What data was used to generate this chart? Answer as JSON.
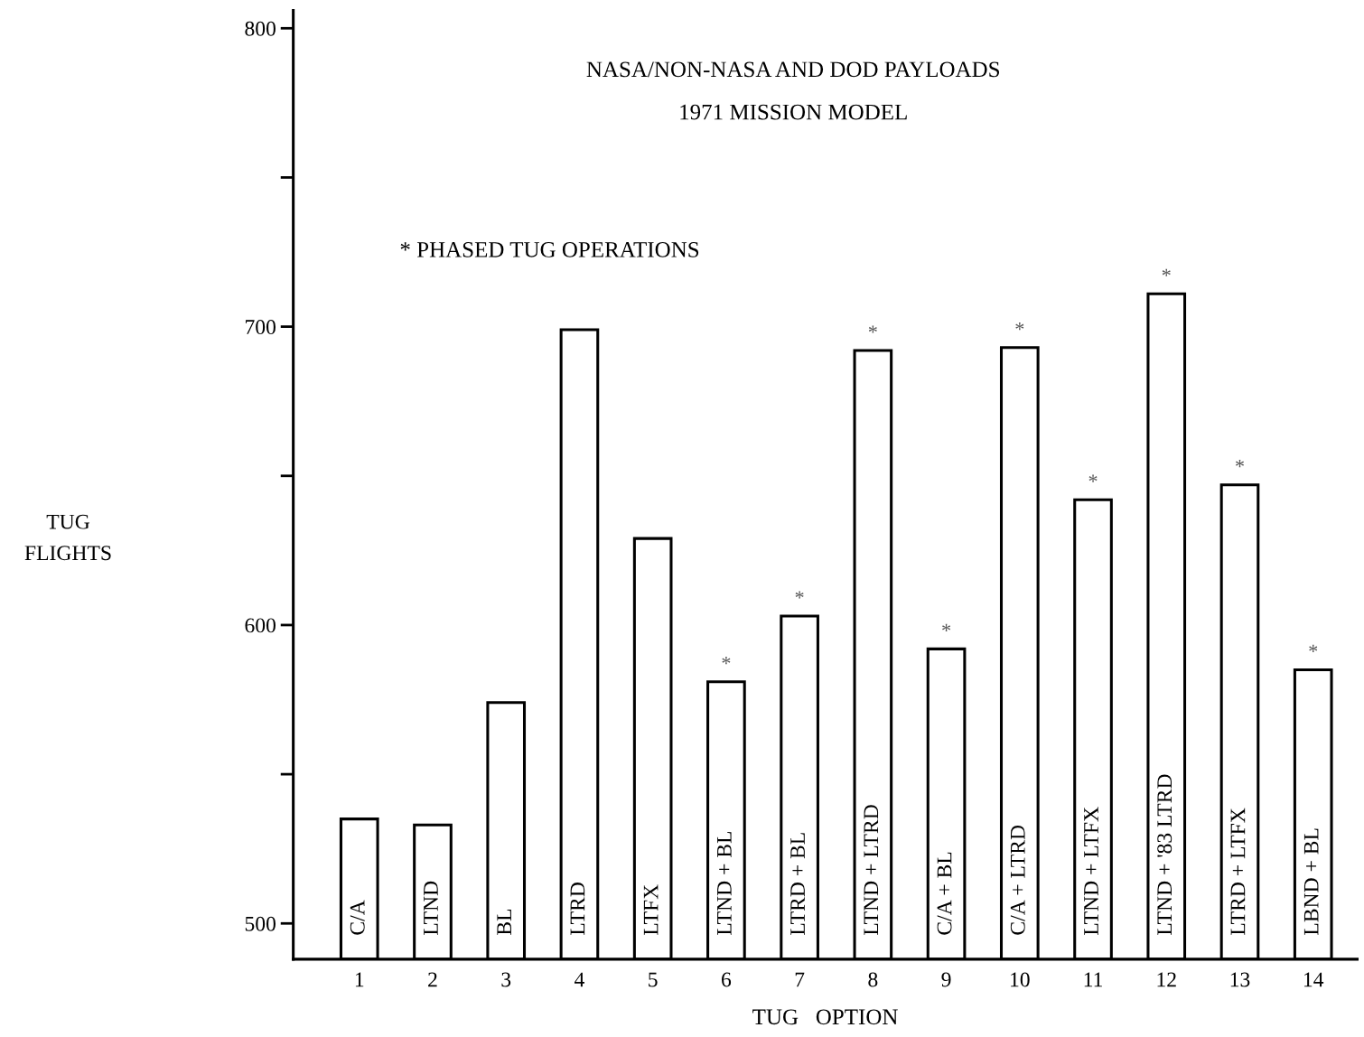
{
  "chart_data": {
    "type": "bar",
    "title": "NASA/NON-NASA AND DOD PAYLOADS",
    "subtitle": "1971 MISSION MODEL",
    "xlabel": "TUG   OPTION",
    "categories": [
      "1",
      "2",
      "3",
      "4",
      "5",
      "6",
      "7",
      "8",
      "9",
      "10",
      "11",
      "12",
      "13",
      "14"
    ],
    "values": [
      535,
      533,
      574,
      699,
      629,
      581,
      603,
      692,
      592,
      693,
      642,
      711,
      647,
      585
    ],
    "color": "#ffffff",
    "ylim": [
      488,
      806
    ],
    "yticks": [
      500,
      {
        "value": 550,
        "label": null
      },
      600,
      {
        "value": 650,
        "label": null
      },
      700,
      {
        "value": 750,
        "label": null
      },
      800
    ],
    "grid": false,
    "annotations": [
      "* PHASED TUG OPERATIONS",
      "TUG\nFLIGHTS",
      "C/A",
      "LTND",
      "BL",
      "LTRD",
      "LTFX",
      "LTND + BL",
      "LTRD + BL",
      "LTND + LTRD",
      "C/A + BL",
      "C/A + LTRD",
      "LTND + LTFX",
      "LTND + '83 LTRD",
      "LTRD + LTFX",
      "LBND + BL",
      {
        "text": "*",
        "x": "6",
        "y": 581
      },
      {
        "text": "*",
        "x": "7",
        "y": 603
      },
      {
        "text": "*",
        "x": "8",
        "y": 692
      },
      {
        "text": "*",
        "x": "9",
        "y": 592
      },
      {
        "text": "*",
        "x": "10",
        "y": 693
      },
      {
        "text": "*",
        "x": "11",
        "y": 642
      },
      {
        "text": "*",
        "x": "12",
        "y": 711
      },
      {
        "text": "*",
        "x": "13",
        "y": 647
      },
      {
        "text": "*",
        "x": "14",
        "y": 585
      }
    ]
  }
}
